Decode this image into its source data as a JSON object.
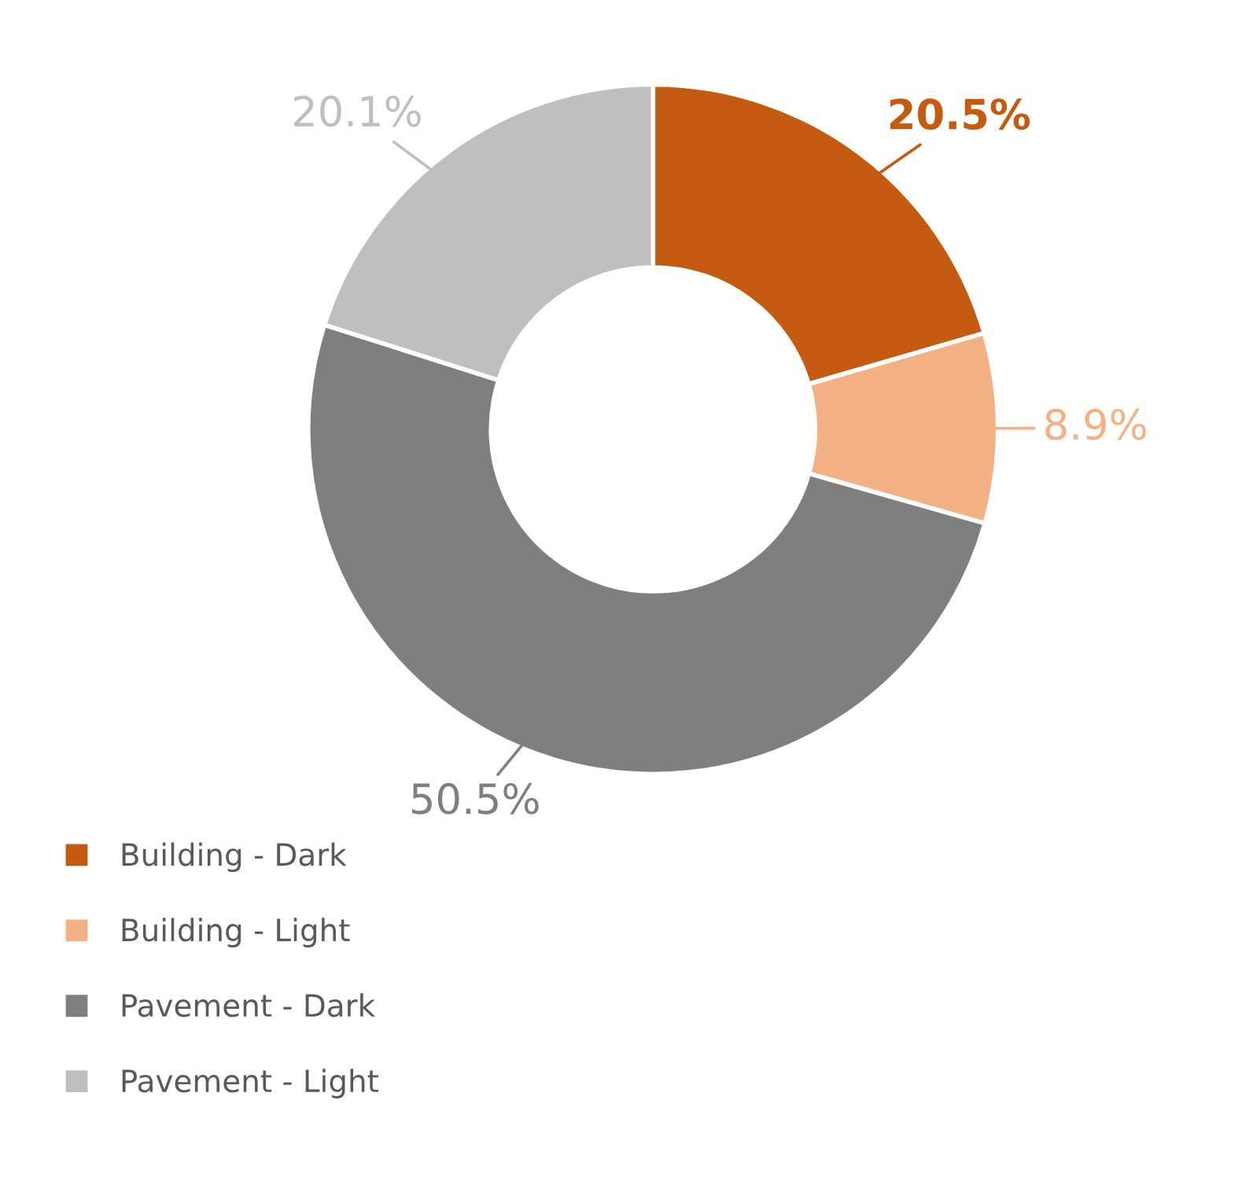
{
  "chart_data": {
    "type": "donut",
    "categories": [
      "Building - Dark",
      "Building - Light",
      "Pavement - Dark",
      "Pavement - Light"
    ],
    "values": [
      20.5,
      8.9,
      50.5,
      20.1
    ],
    "colors": [
      "#c55a11",
      "#f4b183",
      "#7f7f7f",
      "#bfbfbf"
    ],
    "value_labels": [
      "20.5%",
      "8.9%",
      "50.5%",
      "20.1%"
    ],
    "legend": "bottom left"
  }
}
